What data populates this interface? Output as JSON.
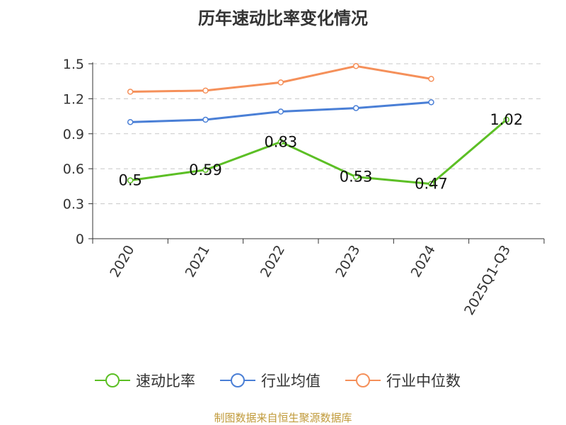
{
  "title": "历年速动比率变化情况",
  "source": "制图数据来自恒生聚源数据库",
  "colors": {
    "quick_ratio": "#5cbf25",
    "industry_avg": "#4a7fd6",
    "industry_median": "#f5905a",
    "grid": "#c8c8c8",
    "axis": "#333333"
  },
  "chart_data": {
    "type": "line",
    "title": "历年速动比率变化情况",
    "categories": [
      "2020",
      "2021",
      "2022",
      "2023",
      "2024",
      "2025Q1-Q3"
    ],
    "ylim": [
      0,
      1.5
    ],
    "yticks": [
      "0",
      "0.3",
      "0.6",
      "0.9",
      "1.2",
      "1.5"
    ],
    "grid": true,
    "legend_position": "bottom",
    "series": [
      {
        "name": "速动比率",
        "color_key": "quick_ratio",
        "values": [
          0.5,
          0.59,
          0.83,
          0.53,
          0.47,
          1.02
        ],
        "labels": [
          "0.5",
          "0.59",
          "0.83",
          "0.53",
          "0.47",
          "1.02"
        ]
      },
      {
        "name": "行业均值",
        "color_key": "industry_avg",
        "values": [
          1.0,
          1.02,
          1.09,
          1.12,
          1.17,
          null
        ]
      },
      {
        "name": "行业中位数",
        "color_key": "industry_median",
        "values": [
          1.26,
          1.27,
          1.34,
          1.48,
          1.37,
          null
        ]
      }
    ]
  }
}
